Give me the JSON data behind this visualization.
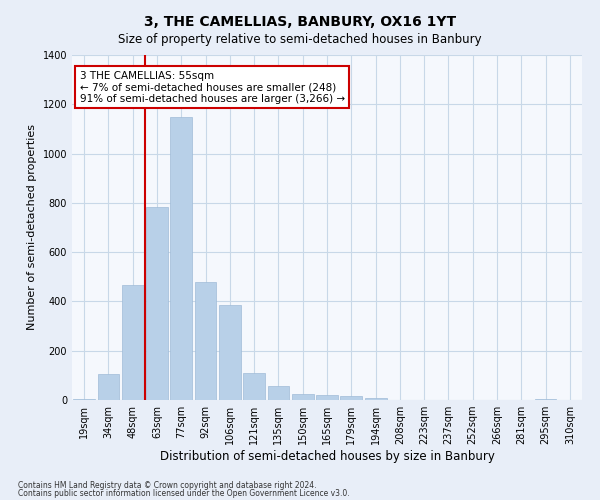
{
  "title": "3, THE CAMELLIAS, BANBURY, OX16 1YT",
  "subtitle": "Size of property relative to semi-detached houses in Banbury",
  "xlabel": "Distribution of semi-detached houses by size in Banbury",
  "ylabel": "Number of semi-detached properties",
  "categories": [
    "19sqm",
    "34sqm",
    "48sqm",
    "63sqm",
    "77sqm",
    "92sqm",
    "106sqm",
    "121sqm",
    "135sqm",
    "150sqm",
    "165sqm",
    "179sqm",
    "194sqm",
    "208sqm",
    "223sqm",
    "237sqm",
    "252sqm",
    "266sqm",
    "281sqm",
    "295sqm",
    "310sqm"
  ],
  "values": [
    5,
    105,
    465,
    785,
    1150,
    480,
    385,
    110,
    55,
    25,
    20,
    15,
    10,
    0,
    0,
    0,
    0,
    0,
    0,
    3,
    0
  ],
  "bar_color": "#b8d0e8",
  "bar_edge_color": "#a0bcd8",
  "red_line_index": 2.5,
  "annotation_text": "3 THE CAMELLIAS: 55sqm\n← 7% of semi-detached houses are smaller (248)\n91% of semi-detached houses are larger (3,266) →",
  "annotation_box_color": "#ffffff",
  "annotation_box_edge": "#cc0000",
  "red_line_color": "#cc0000",
  "ylim": [
    0,
    1400
  ],
  "yticks": [
    0,
    200,
    400,
    600,
    800,
    1000,
    1200,
    1400
  ],
  "footer1": "Contains HM Land Registry data © Crown copyright and database right 2024.",
  "footer2": "Contains public sector information licensed under the Open Government Licence v3.0.",
  "background_color": "#e8eef8",
  "plot_bg_color": "#f5f8fd",
  "grid_color": "#c8d8e8",
  "title_fontsize": 10,
  "subtitle_fontsize": 8.5,
  "tick_fontsize": 7,
  "ylabel_fontsize": 8,
  "xlabel_fontsize": 8.5
}
